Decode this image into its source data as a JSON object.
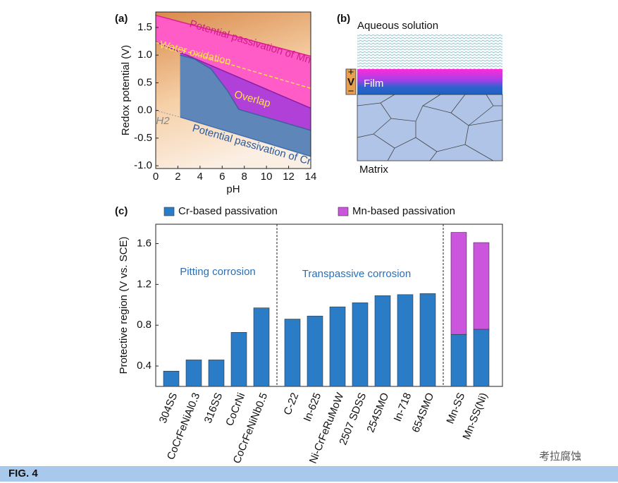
{
  "panel_labels": [
    "(a)",
    "(b)",
    "(c)"
  ],
  "chart_data": [
    {
      "type": "line",
      "xlabel": "pH",
      "ylabel": "Redox potential (V)",
      "xlim": [
        0,
        14
      ],
      "ylim": [
        -1.05,
        1.78
      ],
      "xticks": [
        0,
        2,
        4,
        6,
        8,
        10,
        12,
        14
      ],
      "yticks": [
        {
          "value": -1,
          "label": "-1.0"
        },
        -0.5,
        {
          "value": 0,
          "label": "0.0"
        },
        0.5,
        {
          "value": 1,
          "label": "1.0"
        },
        1.5
      ],
      "series": [
        {
          "color": "#e0208f",
          "x": [
            0,
            14
          ],
          "values": [
            1.72,
            0.98
          ]
        },
        {
          "color": "#8a1fa8",
          "x": [
            0,
            14
          ],
          "values": [
            1.24,
            0.04
          ]
        },
        {
          "color": "#ffe14a",
          "x": [
            0,
            14
          ],
          "values": [
            1.23,
            0.4
          ]
        },
        {
          "color": "#3f5f9f",
          "x": [
            2.2,
            3.5,
            5,
            6.5,
            7.5,
            14
          ],
          "values": [
            1.0,
            0.93,
            0.75,
            0.35,
            0.02,
            -0.36
          ]
        },
        {
          "color": "#3f6faf",
          "x": [
            2.2,
            14
          ],
          "values": [
            -0.12,
            -0.83
          ]
        },
        {
          "color": "#999999",
          "x": [
            0,
            2.2
          ],
          "values": [
            0,
            -0.12
          ]
        }
      ],
      "annotations": [
        "Potential passivation of Mn",
        "Water oxidation",
        "Overlap",
        "Potential passivation of Cr",
        "H2"
      ]
    },
    {
      "type": "bar",
      "ylabel": "Protective region (V vs. SCE)",
      "ylim": [
        0.2,
        1.79
      ],
      "yticks": [
        0.4,
        0.8,
        1.2,
        1.6
      ],
      "categories": [
        "304SS",
        "CoCrFeNiAl0.3",
        "316SS",
        "CoCrNi",
        "CoCrFeNiNb0.5",
        "C-22",
        "In-625",
        "Ni-CrFeRuMoW",
        "2507 SDSS",
        "254SMO",
        "In-718",
        "654SMO",
        "Mn-SS",
        "Mn-SS(Ni)"
      ],
      "group_breaks": [
        5,
        12
      ],
      "series": [
        {
          "name": "Cr-based passivation",
          "color": "#2a7cc7",
          "values": [
            0.35,
            0.46,
            0.46,
            0.73,
            0.97,
            0.86,
            0.89,
            0.98,
            1.02,
            1.09,
            1.1,
            1.11,
            0.71,
            0.76
          ]
        },
        {
          "name": "Mn-based passivation",
          "color": "#cc55dd",
          "values": [
            null,
            null,
            null,
            null,
            null,
            null,
            null,
            null,
            null,
            null,
            null,
            null,
            1.0,
            0.85
          ]
        }
      ],
      "annotations": [
        "Pitting corrosion",
        "Transpassive corrosion"
      ]
    }
  ],
  "diagram_b": {
    "solution": "Aqueous solution",
    "film": "Film",
    "matrix": "Matrix",
    "plus": "+",
    "voltage": "V",
    "minus": "−"
  },
  "caption": "FIG. 4",
  "watermark": "考拉腐蚀"
}
